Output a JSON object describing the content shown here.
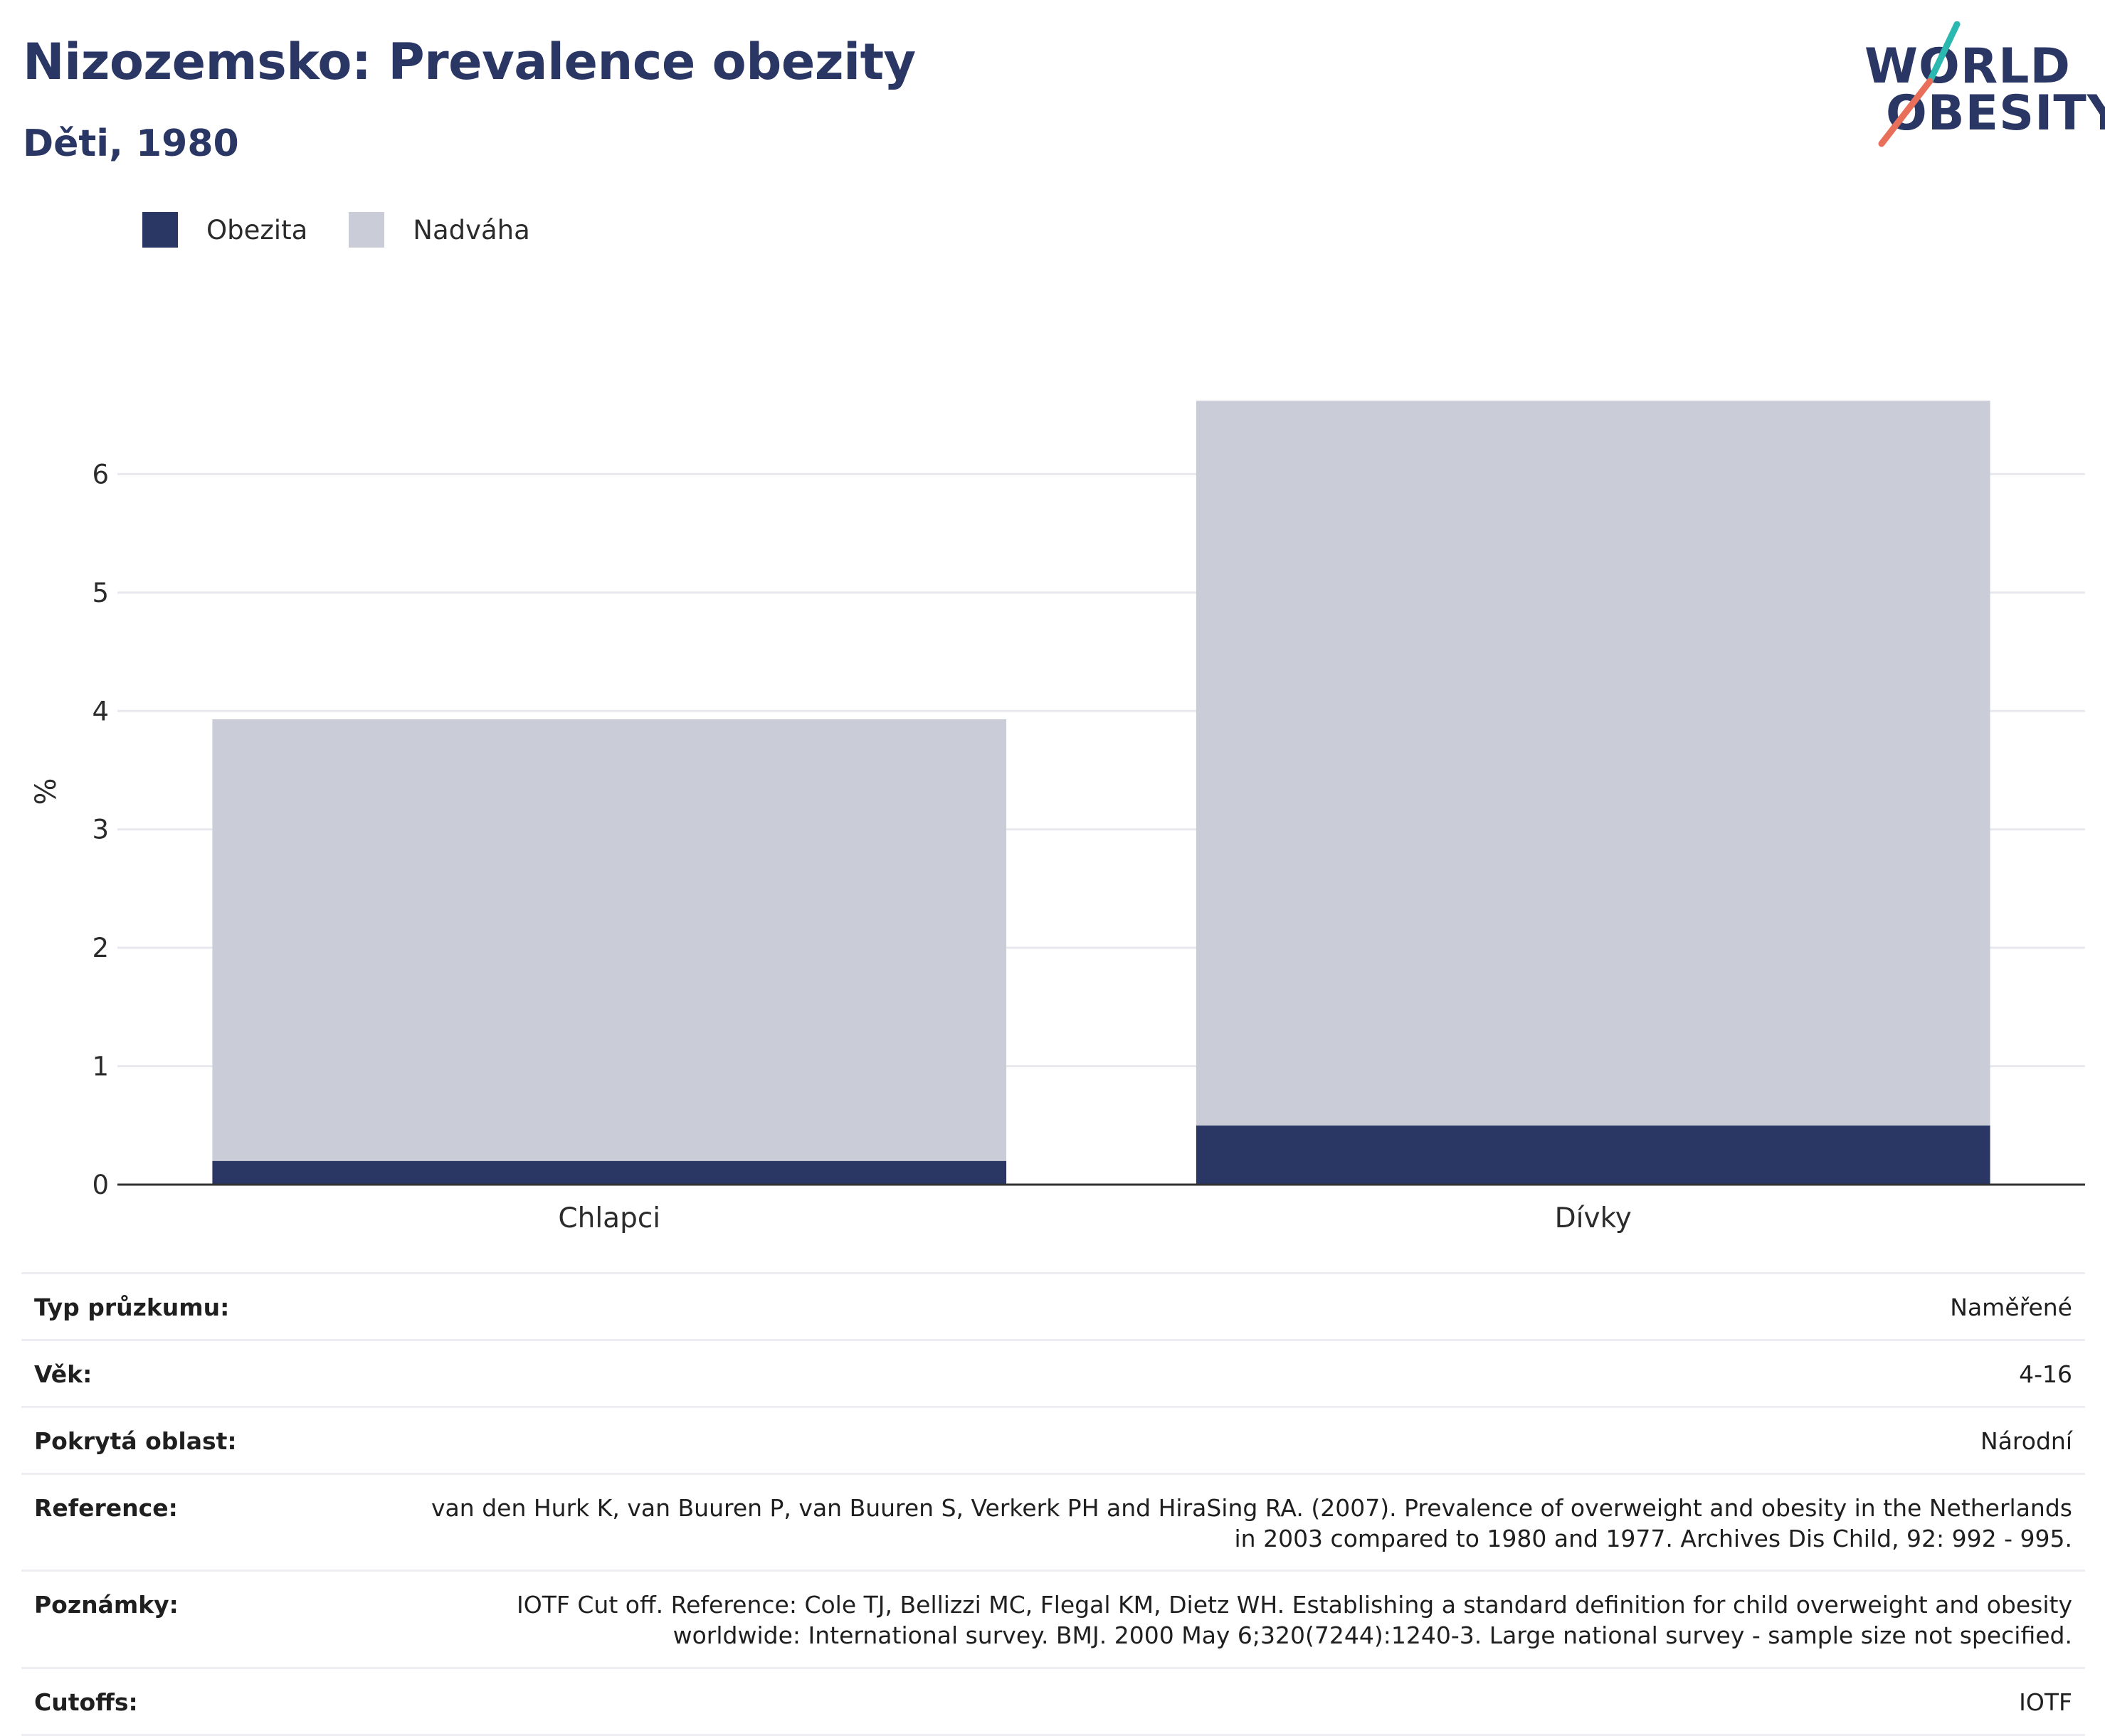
{
  "header": {
    "title": "Nizozemsko: Prevalence obezity",
    "subtitle": "Děti, 1980"
  },
  "logo": {
    "line1": "WORLD",
    "line2": "OBESITY"
  },
  "colors": {
    "obesity": "#2a3663",
    "overweight": "#cacdd8",
    "grid": "#e8e9ee",
    "axis": "#333333",
    "logo_teal": "#2bb8b0",
    "logo_coral": "#e8705a"
  },
  "chart_data": {
    "type": "bar",
    "stacked": true,
    "categories": [
      "Chlapci",
      "Dívky"
    ],
    "series": [
      {
        "name": "Obezita",
        "values": [
          0.2,
          0.5
        ]
      },
      {
        "name": "Nadváha",
        "values": [
          3.73,
          6.12
        ]
      }
    ],
    "ylabel": "%",
    "ylim": [
      0,
      7
    ],
    "yticks": [
      0,
      1,
      2,
      3,
      4,
      5,
      6
    ],
    "grid": true,
    "legend": "top-left"
  },
  "info": [
    {
      "key": "Typ průzkumu:",
      "value": "Naměřené"
    },
    {
      "key": "Věk:",
      "value": "4-16"
    },
    {
      "key": "Pokrytá oblast:",
      "value": "Národní"
    },
    {
      "key": "Reference:",
      "value": "van den Hurk K, van Buuren P, van Buuren S, Verkerk PH and HiraSing RA. (2007). Prevalence of overweight and obesity in the Netherlands in 2003 compared to 1980 and 1977. Archives Dis Child, 92: 992 - 995."
    },
    {
      "key": "Poznámky:",
      "value": "IOTF Cut off. Reference: Cole TJ, Bellizzi MC, Flegal KM, Dietz WH. Establishing a standard definition for child overweight and obesity worldwide: International survey. BMJ. 2000 May 6;320(7244):1240-3. Large national survey - sample size not specified."
    },
    {
      "key": "Cutoffs:",
      "value": "IOTF"
    }
  ]
}
